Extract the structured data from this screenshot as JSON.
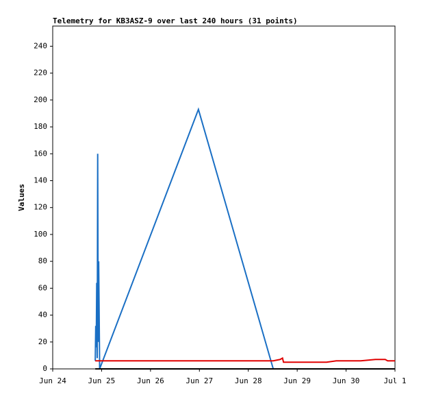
{
  "chart_data": {
    "type": "line",
    "title": "Telemetry for KB3ASZ-9 over last 240 hours (31 points)",
    "y_label": "Values",
    "xlim": [
      0,
      7
    ],
    "xticks": [
      {
        "value": 0,
        "label": "Jun 24"
      },
      {
        "value": 1,
        "label": "Jun 25"
      },
      {
        "value": 2,
        "label": "Jun 26"
      },
      {
        "value": 3,
        "label": "Jun 27"
      },
      {
        "value": 4,
        "label": "Jun 28"
      },
      {
        "value": 5,
        "label": "Jun 29"
      },
      {
        "value": 6,
        "label": "Jun 30"
      },
      {
        "value": 7,
        "label": "Jul 1"
      }
    ],
    "ylim": [
      0,
      255
    ],
    "yticks": [
      0,
      20,
      40,
      60,
      80,
      100,
      120,
      140,
      160,
      180,
      200,
      220,
      240
    ],
    "grid": false,
    "series": [
      {
        "color": "#1a6fc4",
        "x": [
          0.87,
          0.88,
          0.89,
          0.9,
          0.91,
          0.92,
          0.93,
          0.94,
          0.96,
          2.98,
          4.51
        ],
        "values": [
          6,
          32,
          16,
          64,
          8,
          160,
          20,
          80,
          0,
          193,
          0
        ]
      },
      {
        "color": "#e00000",
        "x": [
          0.87,
          4.51,
          4.65,
          4.7,
          4.72,
          5.3,
          5.6,
          5.8,
          6.3,
          6.6,
          6.8,
          6.85,
          7
        ],
        "values": [
          6,
          6,
          7,
          8,
          5,
          5,
          5,
          6,
          6,
          7,
          7,
          6,
          6
        ]
      },
      {
        "color": "#000000",
        "x": [
          0.87,
          7
        ],
        "values": [
          0,
          0
        ]
      }
    ]
  }
}
